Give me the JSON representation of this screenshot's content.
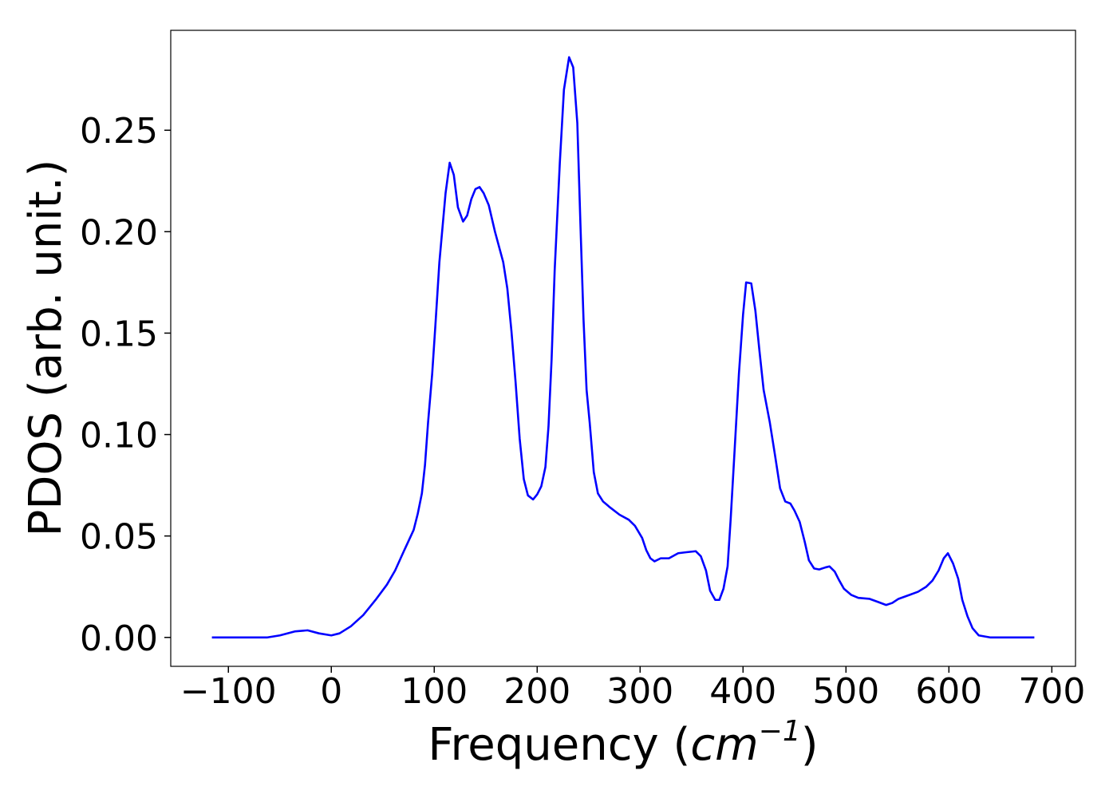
{
  "chart_data": {
    "type": "line",
    "xlabel": [
      "Frequency (",
      "cm",
      "−1",
      ")"
    ],
    "ylabel": "PDOS (arb. unit.)",
    "x": [
      -116,
      -62,
      -50,
      -35,
      -23,
      -12,
      0,
      8,
      19,
      31,
      43,
      54,
      62,
      70,
      80,
      84,
      88,
      91,
      94,
      98,
      101,
      105,
      111,
      115,
      119,
      123,
      128,
      132,
      136,
      140,
      144,
      148,
      153,
      159,
      167,
      171,
      175,
      179,
      183,
      187,
      191,
      196,
      200,
      204,
      208,
      211,
      214,
      217,
      222,
      226,
      231,
      235,
      239,
      242,
      245,
      248,
      251,
      255,
      259,
      264,
      271,
      280,
      289,
      295,
      302,
      306,
      310,
      314,
      320,
      328,
      337,
      345,
      354,
      359,
      364,
      368,
      373,
      377,
      381,
      385,
      388,
      392,
      396,
      400,
      403,
      408,
      412,
      416,
      420,
      426,
      431,
      436,
      441,
      446,
      450,
      455,
      460,
      464,
      469,
      474,
      480,
      484,
      489,
      493,
      498,
      505,
      512,
      523,
      531,
      539,
      545,
      551,
      562,
      570,
      578,
      584,
      590,
      595,
      599,
      604,
      609,
      613,
      618,
      623,
      629,
      640,
      683
    ],
    "series": [
      {
        "color": "#0000ff",
        "values": [
          0,
          0,
          0.001,
          0.003,
          0.0035,
          0.002,
          0.001,
          0.002,
          0.0055,
          0.011,
          0.0185,
          0.026,
          0.033,
          0.042,
          0.053,
          0.061,
          0.071,
          0.085,
          0.106,
          0.13,
          0.153,
          0.185,
          0.219,
          0.234,
          0.228,
          0.212,
          0.205,
          0.208,
          0.216,
          0.221,
          0.222,
          0.219,
          0.213,
          0.2,
          0.185,
          0.172,
          0.151,
          0.126,
          0.098,
          0.078,
          0.07,
          0.068,
          0.0705,
          0.0745,
          0.084,
          0.104,
          0.137,
          0.181,
          0.234,
          0.27,
          0.286,
          0.281,
          0.2535,
          0.204,
          0.157,
          0.122,
          0.106,
          0.0815,
          0.071,
          0.067,
          0.064,
          0.0605,
          0.058,
          0.055,
          0.049,
          0.043,
          0.039,
          0.0375,
          0.039,
          0.039,
          0.0415,
          0.042,
          0.0425,
          0.04,
          0.033,
          0.023,
          0.0185,
          0.0185,
          0.024,
          0.035,
          0.0585,
          0.094,
          0.13,
          0.159,
          0.175,
          0.1745,
          0.161,
          0.141,
          0.122,
          0.106,
          0.09,
          0.0735,
          0.067,
          0.066,
          0.0625,
          0.057,
          0.047,
          0.038,
          0.034,
          0.0335,
          0.0345,
          0.035,
          0.0325,
          0.0285,
          0.024,
          0.021,
          0.0195,
          0.019,
          0.0175,
          0.016,
          0.017,
          0.019,
          0.021,
          0.0225,
          0.025,
          0.028,
          0.033,
          0.039,
          0.0415,
          0.0365,
          0.029,
          0.0185,
          0.0105,
          0.0045,
          0.001,
          0,
          0
        ]
      }
    ],
    "xlim": [
      -156,
      723
    ],
    "ylim": [
      -0.01425,
      0.29925
    ],
    "xticks": [
      {
        "value": -100,
        "label": "−100"
      },
      0,
      100,
      200,
      300,
      400,
      500,
      600,
      700
    ],
    "yticks": [
      {
        "value": 0,
        "label": "0.00"
      },
      {
        "value": 0.05,
        "label": "0.05"
      },
      {
        "value": 0.1,
        "label": "0.10"
      },
      {
        "value": 0.15,
        "label": "0.15"
      },
      {
        "value": 0.2,
        "label": "0.20"
      },
      {
        "value": 0.25,
        "label": "0.25"
      }
    ],
    "grid": false
  }
}
